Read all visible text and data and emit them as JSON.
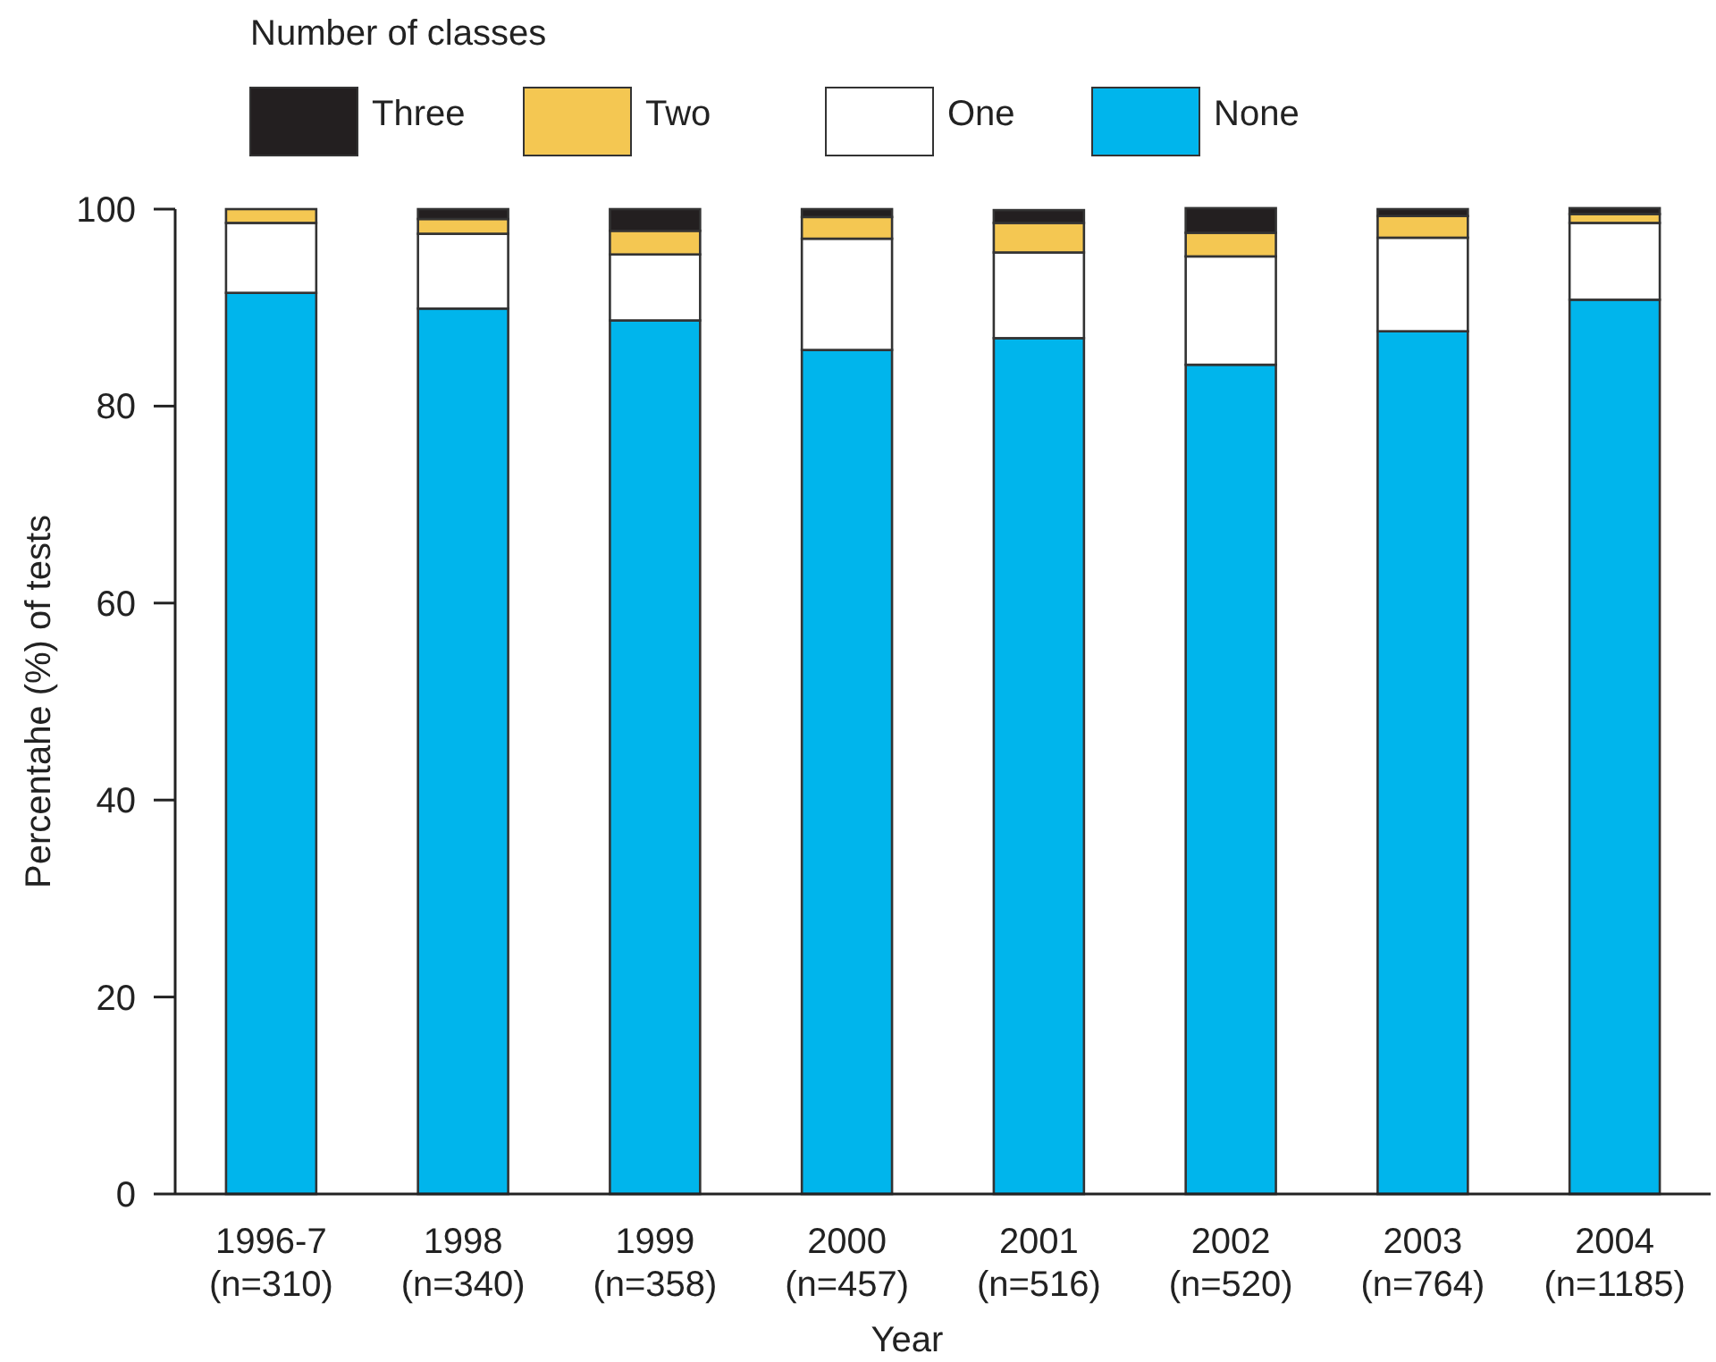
{
  "chart_data": {
    "type": "bar",
    "stacked": true,
    "legend": "top left",
    "legend_title": "Number of classes",
    "xlabel": "Year",
    "ylabel": "Percentahe (%) of tests",
    "categories": [
      "1996-7\n(n=310)",
      "1998\n(n=340)",
      "1999\n(n=358)",
      "2000\n(n=457)",
      "2001\n(n=516)",
      "2002\n(n=520)",
      "2003\n(n=764)",
      "2004\n(n=1185)"
    ],
    "series": [
      {
        "name": "None",
        "color": "#00b5ec",
        "values": [
          91.5,
          89.9,
          88.7,
          85.7,
          86.9,
          84.2,
          87.6,
          90.8
        ]
      },
      {
        "name": "One",
        "color": "#ffffff",
        "values": [
          7.1,
          7.6,
          6.7,
          11.3,
          8.7,
          11.0,
          9.5,
          7.8
        ]
      },
      {
        "name": "Two",
        "color": "#f4c752",
        "values": [
          1.4,
          1.5,
          2.4,
          2.2,
          3.0,
          2.4,
          2.2,
          0.9
        ]
      },
      {
        "name": "Three",
        "color": "#231f20",
        "values": [
          0,
          1.0,
          2.2,
          0.8,
          1.3,
          2.5,
          0.7,
          0.6
        ]
      }
    ],
    "ylim": [
      0,
      100
    ],
    "yticks": [
      0,
      20,
      40,
      60,
      80,
      100
    ]
  }
}
